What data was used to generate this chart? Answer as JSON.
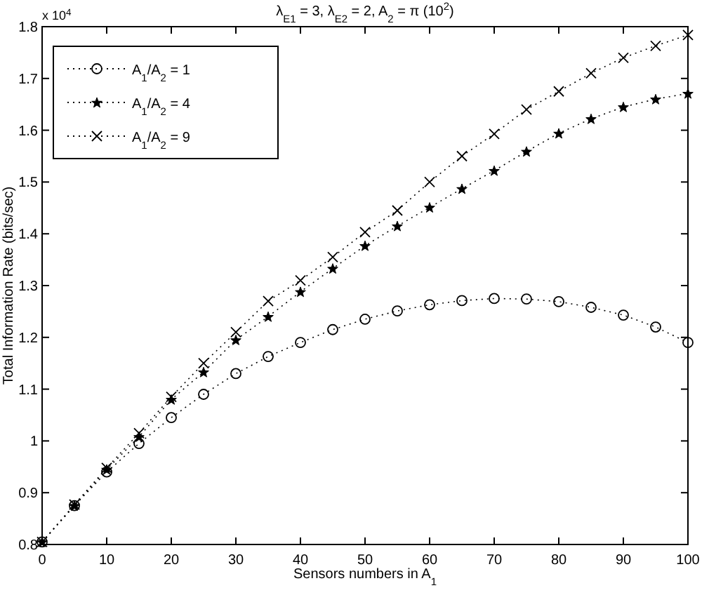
{
  "chart_data": {
    "type": "line",
    "title": "λ$_{E1}$ = 3, λ$_{E2}$ = 2,  A$_{2}$ = π (10$^{2}$)",
    "xlabel": "Sensors numbers in A$_{1}$",
    "ylabel": "Total Information Rate  (bits/sec)",
    "annotations": [
      "x 10$^{4}$"
    ],
    "x": [
      0,
      5,
      10,
      15,
      20,
      25,
      30,
      35,
      40,
      45,
      50,
      55,
      60,
      65,
      70,
      75,
      80,
      85,
      90,
      95,
      100
    ],
    "xlim": [
      0,
      100
    ],
    "xticks": [
      0,
      10,
      20,
      30,
      40,
      50,
      60,
      70,
      80,
      90,
      100
    ],
    "ylim": [
      0.8,
      1.8
    ],
    "yticks": [
      0.8,
      0.9,
      1,
      1.1,
      1.2,
      1.3,
      1.4,
      1.5,
      1.6,
      1.7,
      1.8
    ],
    "grid": false,
    "legend": "top left",
    "line_style": "dotted",
    "series": [
      {
        "name": "A$_{1}$/A$_{2}$ = 1",
        "color": "#000000",
        "marker": "circle",
        "values": [
          0.805,
          0.875,
          0.94,
          0.995,
          1.045,
          1.09,
          1.13,
          1.163,
          1.19,
          1.215,
          1.235,
          1.251,
          1.263,
          1.271,
          1.275,
          1.274,
          1.269,
          1.258,
          1.243,
          1.22,
          1.19
        ]
      },
      {
        "name": "A$_{1}$/A$_{2}$ = 4",
        "color": "#000000",
        "marker": "star",
        "values": [
          0.805,
          0.875,
          0.945,
          1.008,
          1.08,
          1.133,
          1.195,
          1.24,
          1.288,
          1.333,
          1.377,
          1.415,
          1.451,
          1.487,
          1.522,
          1.559,
          1.594,
          1.622,
          1.645,
          1.66,
          1.671
        ]
      },
      {
        "name": "A$_{1}$/A$_{2}$ = 9",
        "color": "#000000",
        "marker": "cross",
        "values": [
          0.805,
          0.877,
          0.948,
          1.015,
          1.085,
          1.15,
          1.21,
          1.27,
          1.31,
          1.355,
          1.403,
          1.445,
          1.5,
          1.55,
          1.593,
          1.64,
          1.675,
          1.71,
          1.74,
          1.763,
          1.784
        ]
      }
    ]
  }
}
